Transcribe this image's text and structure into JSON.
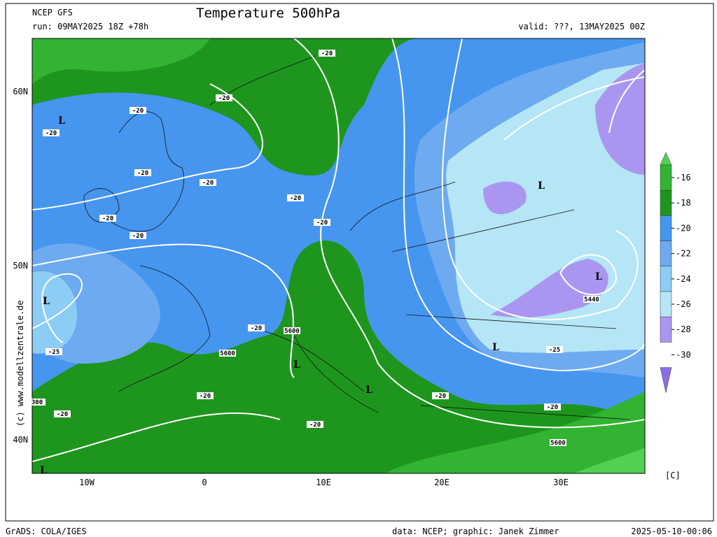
{
  "header": {
    "model": "NCEP GFS",
    "run": "run: 09MAY2025 18Z +78h",
    "title": "Temperature 500hPa",
    "valid": "valid: ???, 13MAY2025 00Z"
  },
  "map": {
    "lat_labels": [
      "60N",
      "50N",
      "40N"
    ],
    "lon_labels": [
      "10W",
      "0",
      "10E",
      "20E",
      "30E"
    ],
    "contour_labels": [
      "-20",
      "-20",
      "-20",
      "-20",
      "-20",
      "-20",
      "-20",
      "-20",
      "-20",
      "-20",
      "-20",
      "-20",
      "-20",
      "-20",
      "-20",
      "-20",
      "-25",
      "-25",
      "5600",
      "5600",
      "5600",
      "300",
      "5440"
    ],
    "lows": [
      "L",
      "L",
      "L",
      "L",
      "L",
      "L",
      "L",
      "L"
    ]
  },
  "colorbar": {
    "labels": [
      "-16",
      "-18",
      "-20",
      "-22",
      "-24",
      "-26",
      "-28",
      "-30"
    ],
    "colors": [
      "#50d250",
      "#32b432",
      "#1e961e",
      "#4696f0",
      "#6eaaf0",
      "#8ccdf5",
      "#b4e6f5",
      "#aa96f0",
      "#8c6ee6"
    ],
    "unit": "[C]"
  },
  "watermark": "(c) www.modellzentrale.de",
  "footer": {
    "software": "GrADS: COLA/IGES",
    "credit": "data: NCEP; graphic: Janek Zimmer",
    "timestamp": "2025-05-10-00:06"
  }
}
